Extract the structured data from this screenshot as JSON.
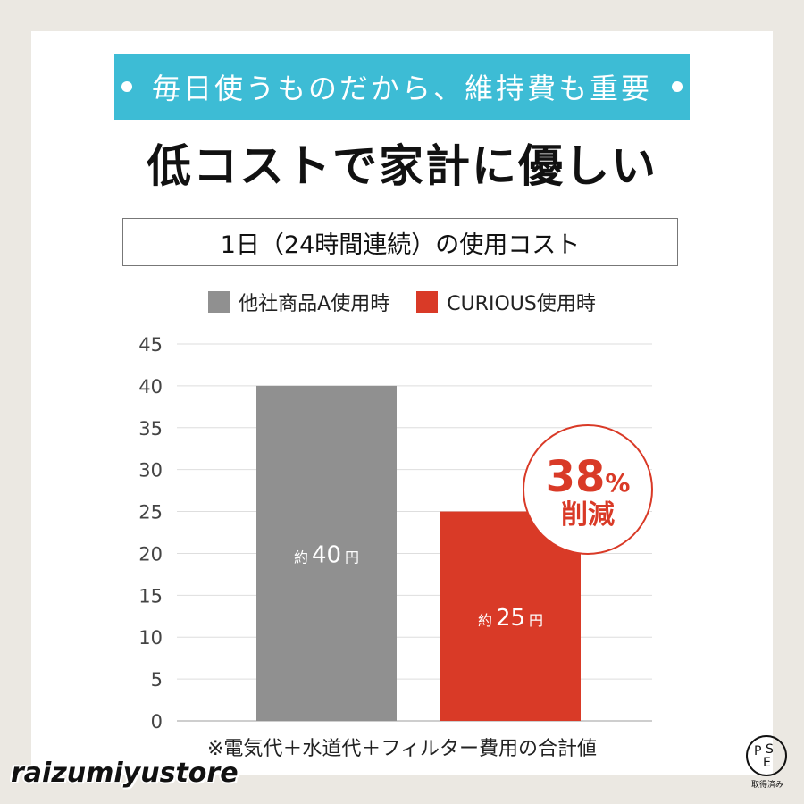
{
  "header": {
    "ribbon_text": "毎日使うものだから、維持費も重要",
    "title": "低コストで家計に優しい",
    "subtitle": "1日（24時間連続）の使用コスト"
  },
  "legend": [
    {
      "label": "他社商品A使用時",
      "color": "#909090"
    },
    {
      "label": "CURIOUS使用時",
      "color": "#d93a27"
    }
  ],
  "chart_data": {
    "type": "bar",
    "categories": [
      "他社商品A使用時",
      "CURIOUS使用時"
    ],
    "values": [
      40,
      25
    ],
    "bar_labels": [
      {
        "prefix": "約",
        "value": "40",
        "suffix": "円"
      },
      {
        "prefix": "約",
        "value": "25",
        "suffix": "円"
      }
    ],
    "colors": [
      "#909090",
      "#d93a27"
    ],
    "ylim": [
      0,
      45
    ],
    "yticks": [
      "0",
      "5",
      "10",
      "15",
      "20",
      "25",
      "30",
      "35",
      "40",
      "45"
    ],
    "grid": true,
    "annotation": {
      "percent": "38",
      "percent_sign": "%",
      "text": "削減"
    }
  },
  "footnote": "※電気代＋水道代＋フィルター費用の合計値",
  "watermark": "raizumiyustore",
  "pse_mark": {
    "letters": [
      "P",
      "S",
      "E"
    ],
    "caption": "取得済み"
  }
}
